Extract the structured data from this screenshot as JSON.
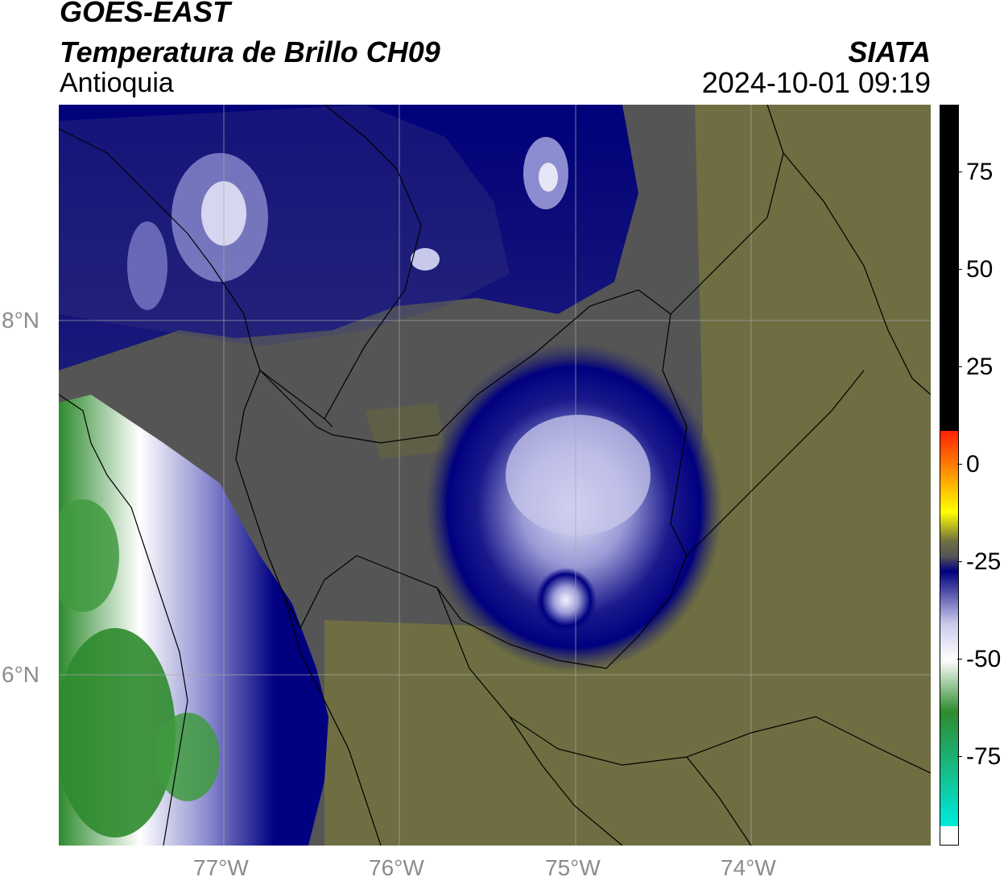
{
  "header": {
    "title_line1": "GOES-EAST",
    "title_line2": "Temperatura de Brillo CH09",
    "region": "Antioquia",
    "organization": "SIATA",
    "timestamp": "2024-10-01 09:19"
  },
  "map": {
    "lat_labels": [
      "8°N",
      "6°N"
    ],
    "lon_labels": [
      "77°W",
      "76°W",
      "75°W",
      "74°W"
    ]
  },
  "colorbar": {
    "tick_labels": [
      "75",
      "50",
      "25",
      "0",
      "-25",
      "-50",
      "-75"
    ],
    "colors": {
      "black": "#000000",
      "red": "#ff2000",
      "orange": "#ff9a00",
      "yellow": "#ffff00",
      "olive": "#6e6e42",
      "gray": "#555555",
      "navy": "#000080",
      "light": "#c8c8ec",
      "white": "#ffffff",
      "green": "#2e8b2e",
      "cyan": "#00e8d8"
    }
  }
}
